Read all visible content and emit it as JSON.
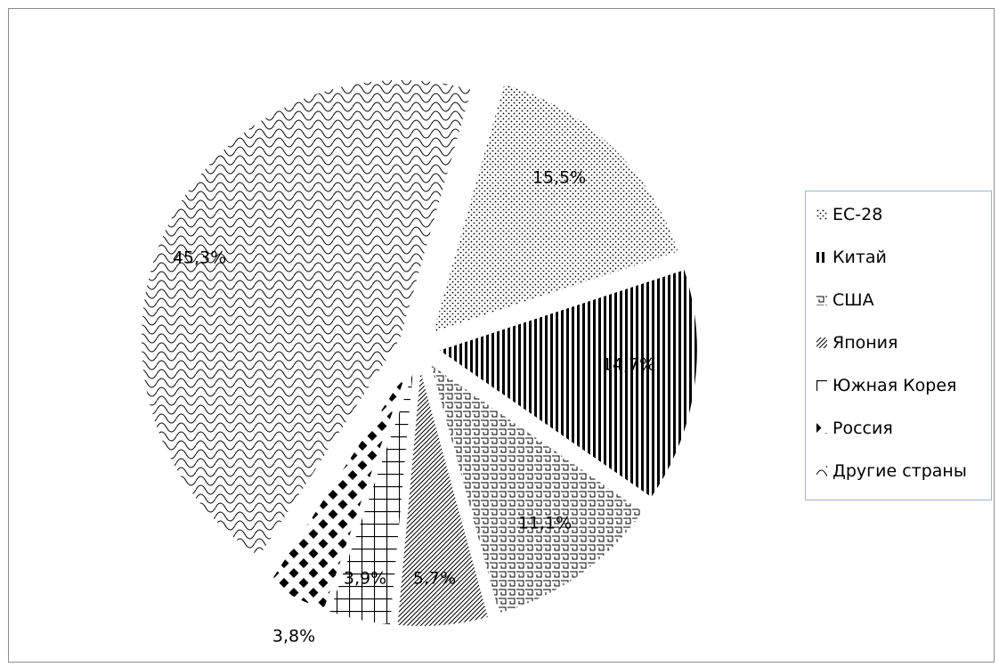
{
  "chart_data": {
    "type": "pie",
    "title": "",
    "slices": [
      {
        "name": "ЕС-28",
        "value": 15.5,
        "label": "15,5%",
        "pattern": "dots"
      },
      {
        "name": "Китай",
        "value": 14.7,
        "label": "14,7%",
        "pattern": "vertical-stripes"
      },
      {
        "name": "США",
        "value": 11.1,
        "label": "11,1%",
        "pattern": "maze"
      },
      {
        "name": "Япония",
        "value": 5.7,
        "label": "5,7%",
        "pattern": "diagonal"
      },
      {
        "name": "Южная Корея",
        "value": 3.9,
        "label": "3,9%",
        "pattern": "grid"
      },
      {
        "name": "Россия",
        "value": 3.8,
        "label": "3,8%",
        "pattern": "diamonds"
      },
      {
        "name": "Другие страны",
        "value": 45.3,
        "label": "45,3%",
        "pattern": "scales"
      }
    ],
    "legend": {
      "position": "right"
    },
    "colors": {
      "ink": "#000000",
      "background": "#ffffff",
      "legend_border": "#9bb5d8"
    }
  }
}
